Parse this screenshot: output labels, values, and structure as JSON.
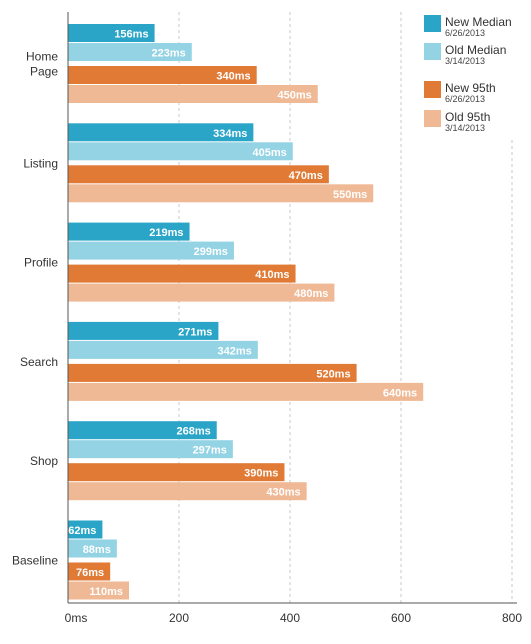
{
  "chart_data": {
    "type": "bar",
    "orientation": "horizontal",
    "categories": [
      "Home\nPage",
      "Listing",
      "Profile",
      "Search",
      "Shop",
      "Baseline"
    ],
    "series": [
      {
        "name": "New Median",
        "date": "6/26/2013",
        "color": "#2aa5c7",
        "values": [
          156,
          334,
          219,
          271,
          268,
          62
        ]
      },
      {
        "name": "Old Median",
        "date": "3/14/2013",
        "color": "#93d3e4",
        "values": [
          223,
          405,
          299,
          342,
          297,
          88
        ]
      },
      {
        "name": "New 95th",
        "date": "6/26/2013",
        "color": "#e07a35",
        "values": [
          340,
          470,
          410,
          520,
          390,
          76
        ]
      },
      {
        "name": "Old 95th",
        "date": "3/14/2013",
        "color": "#efb996",
        "values": [
          450,
          550,
          480,
          640,
          430,
          110
        ]
      }
    ],
    "value_suffix": "ms",
    "xticks": [
      "0ms",
      "200",
      "400",
      "600",
      "800"
    ],
    "xtick_values": [
      0,
      200,
      400,
      600,
      800
    ],
    "xlim": [
      0,
      800
    ],
    "grid": true,
    "legend_position": "top-right"
  }
}
